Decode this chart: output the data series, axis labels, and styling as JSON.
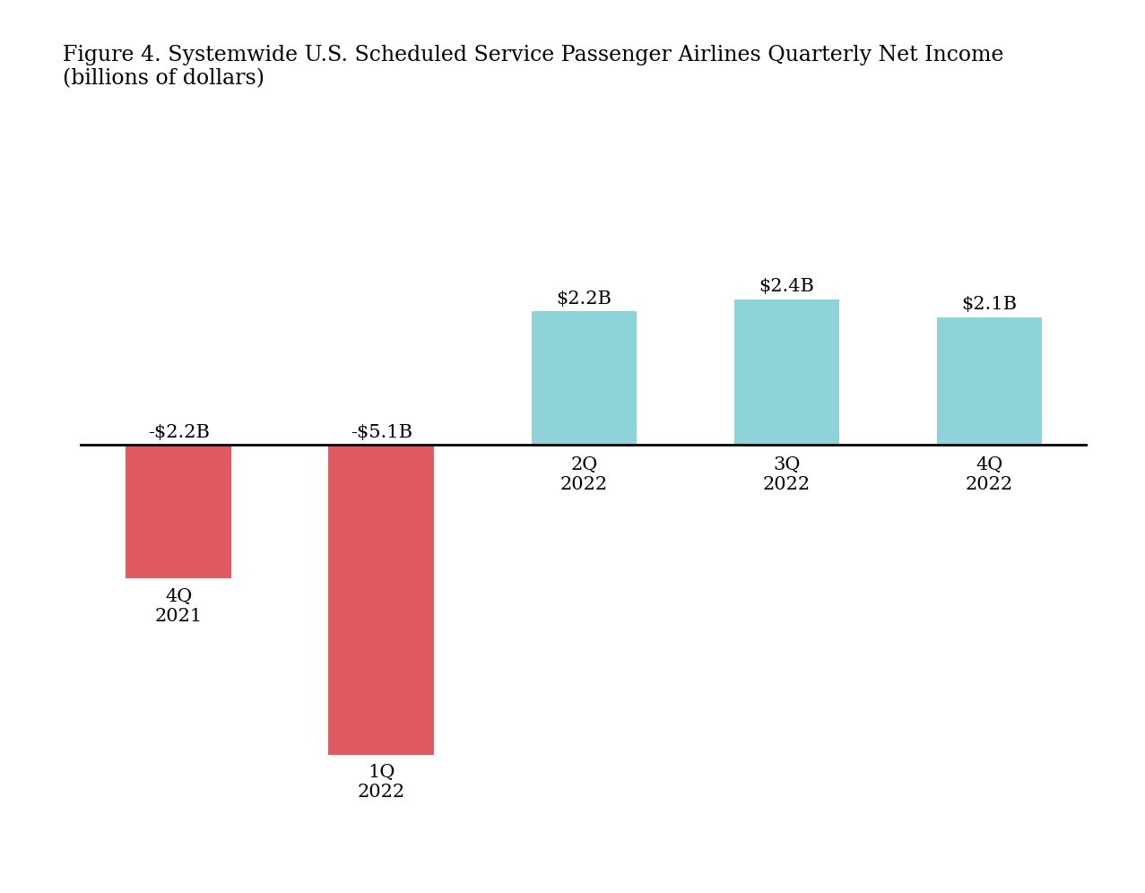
{
  "categories": [
    "4Q\n2021",
    "1Q\n2022",
    "2Q\n2022",
    "3Q\n2022",
    "4Q\n2022"
  ],
  "values": [
    -2.2,
    -5.1,
    2.2,
    2.4,
    2.1
  ],
  "labels": [
    "-$2.2B",
    "-$5.1B",
    "$2.2B",
    "$2.4B",
    "$2.1B"
  ],
  "bar_colors_positive": "#8dd3d7",
  "bar_colors_negative": "#e05a62",
  "title_line1": "Figure 4. Systemwide U.S. Scheduled Service Passenger Airlines Quarterly Net Income",
  "title_line2": "(billions of dollars)",
  "background_color": "#ffffff",
  "ylim_min": -6.2,
  "ylim_max": 3.8,
  "label_fontsize": 15,
  "tick_fontsize": 15,
  "title_fontsize": 17,
  "bar_width": 0.52
}
